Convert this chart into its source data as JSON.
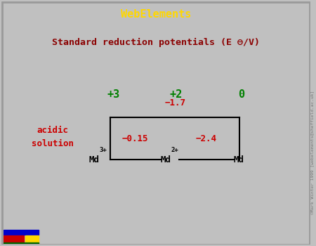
{
  "title_bar": "WebElements",
  "title_bar_bg": "#8B0000",
  "title_bar_color": "#FFD700",
  "subtitle": "Standard reduction potentials (E ⊖/V)",
  "subtitle_bg": "#FFFFF0",
  "subtitle_color": "#8B0000",
  "outer_bg": "#C0C0C0",
  "inner_bg": "#FFFFFF",
  "oxidation_states": [
    "+3",
    "+2",
    "0"
  ],
  "oxidation_color": "#008000",
  "acidic_label": "acidic\nsolution",
  "acidic_color": "#CC0000",
  "value_color": "#CC0000",
  "seg_val1": "−0.15",
  "seg_val2": "−2.4",
  "overall_value": "−1.7",
  "copyright": "©Mark Winter 1999 [webelements@sheffield.ac.uk]",
  "bottom_bar_colors": [
    "#0000CC",
    "#CC0000",
    "#FFD700",
    "#006600"
  ]
}
